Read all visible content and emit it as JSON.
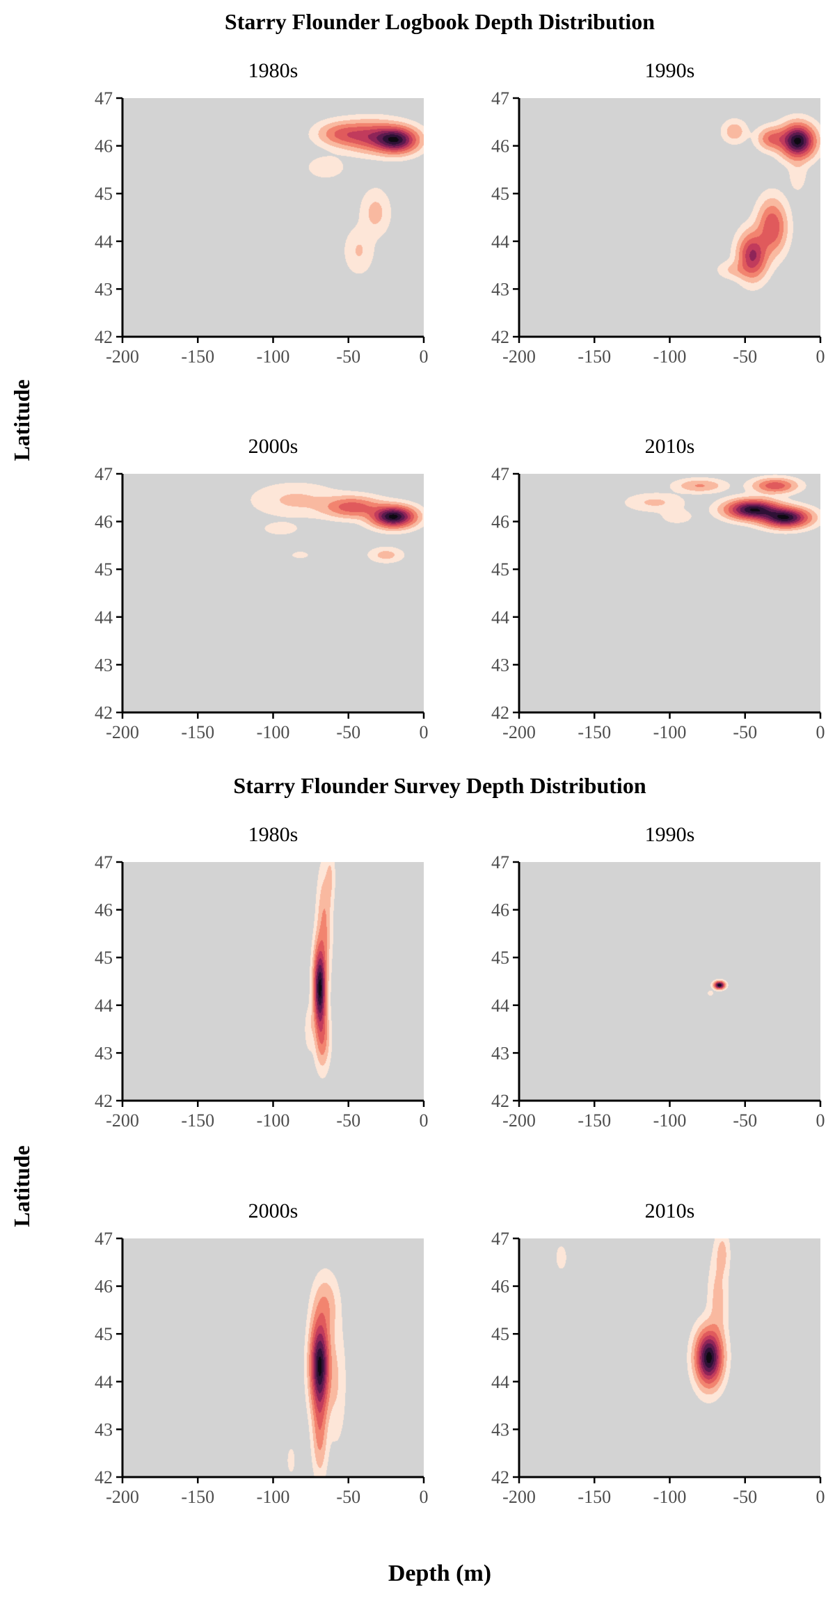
{
  "figure": {
    "xlabel": "Depth (m)",
    "ylabel": "Latitude"
  },
  "colors": {
    "panel_background": "#d3d3d3",
    "density_scale": [
      "#fde6d8",
      "#f9b9a0",
      "#f2846f",
      "#e05a5c",
      "#c13b5c",
      "#8e2458",
      "#5b1a4e",
      "#2e1136",
      "#0d0a12"
    ]
  },
  "chart_data": [
    {
      "type": "heatmap",
      "title": "Starry Flounder Logbook Depth Distribution",
      "xlabel": "Depth (m)",
      "ylabel": "Latitude",
      "xlim": [
        -200,
        0
      ],
      "ylim": [
        42,
        47
      ],
      "xticks": [
        -200,
        -150,
        -100,
        -50,
        0
      ],
      "yticks": [
        42,
        43,
        44,
        45,
        46,
        47
      ],
      "xtick_labels": [
        "-200",
        "-150",
        "-100",
        "-50",
        "0"
      ],
      "ytick_labels": [
        "42",
        "43",
        "44",
        "45",
        "46",
        "47"
      ],
      "grid": false,
      "legend": "none",
      "panels": [
        {
          "label": "1980s",
          "density_peaks": [
            {
              "depth": -18,
              "lat": 46.12,
              "sd_depth": 9,
              "sd_lat": 0.17,
              "weight": 1.0
            },
            {
              "depth": -35,
              "lat": 46.2,
              "sd_depth": 12,
              "sd_lat": 0.2,
              "weight": 0.55
            },
            {
              "depth": -55,
              "lat": 46.25,
              "sd_depth": 10,
              "sd_lat": 0.16,
              "weight": 0.35
            },
            {
              "depth": -65,
              "lat": 45.55,
              "sd_depth": 8,
              "sd_lat": 0.15,
              "weight": 0.1
            },
            {
              "depth": -32,
              "lat": 44.6,
              "sd_depth": 6,
              "sd_lat": 0.3,
              "weight": 0.16
            },
            {
              "depth": -43,
              "lat": 43.8,
              "sd_depth": 6,
              "sd_lat": 0.3,
              "weight": 0.13
            }
          ]
        },
        {
          "label": "1990s",
          "density_peaks": [
            {
              "depth": -15,
              "lat": 46.1,
              "sd_depth": 7,
              "sd_lat": 0.22,
              "weight": 0.9
            },
            {
              "depth": -32,
              "lat": 46.15,
              "sd_depth": 6,
              "sd_lat": 0.15,
              "weight": 0.3
            },
            {
              "depth": -57,
              "lat": 46.3,
              "sd_depth": 5,
              "sd_lat": 0.15,
              "weight": 0.15
            },
            {
              "depth": -15,
              "lat": 45.4,
              "sd_depth": 4,
              "sd_lat": 0.25,
              "weight": 0.06
            },
            {
              "depth": -45,
              "lat": 43.7,
              "sd_depth": 6,
              "sd_lat": 0.3,
              "weight": 0.55
            },
            {
              "depth": -32,
              "lat": 44.3,
              "sd_depth": 6,
              "sd_lat": 0.35,
              "weight": 0.4
            },
            {
              "depth": -57,
              "lat": 43.4,
              "sd_depth": 7,
              "sd_lat": 0.12,
              "weight": 0.1
            }
          ]
        },
        {
          "label": "2000s",
          "density_peaks": [
            {
              "depth": -20,
              "lat": 46.1,
              "sd_depth": 9,
              "sd_lat": 0.14,
              "weight": 1.0
            },
            {
              "depth": -47,
              "lat": 46.3,
              "sd_depth": 12,
              "sd_lat": 0.14,
              "weight": 0.4
            },
            {
              "depth": -85,
              "lat": 46.45,
              "sd_depth": 18,
              "sd_lat": 0.22,
              "weight": 0.12
            },
            {
              "depth": -95,
              "lat": 45.85,
              "sd_depth": 7,
              "sd_lat": 0.08,
              "weight": 0.09
            },
            {
              "depth": -25,
              "lat": 45.3,
              "sd_depth": 7,
              "sd_lat": 0.1,
              "weight": 0.14
            },
            {
              "depth": -82,
              "lat": 45.3,
              "sd_depth": 4,
              "sd_lat": 0.05,
              "weight": 0.07
            }
          ]
        },
        {
          "label": "2010s",
          "density_peaks": [
            {
              "depth": -45,
              "lat": 46.25,
              "sd_depth": 11,
              "sd_lat": 0.13,
              "weight": 0.8
            },
            {
              "depth": -23,
              "lat": 46.08,
              "sd_depth": 10,
              "sd_lat": 0.13,
              "weight": 0.8
            },
            {
              "depth": -30,
              "lat": 46.75,
              "sd_depth": 9,
              "sd_lat": 0.1,
              "weight": 0.35
            },
            {
              "depth": -80,
              "lat": 46.75,
              "sd_depth": 10,
              "sd_lat": 0.09,
              "weight": 0.18
            },
            {
              "depth": -110,
              "lat": 46.4,
              "sd_depth": 12,
              "sd_lat": 0.12,
              "weight": 0.1
            },
            {
              "depth": -95,
              "lat": 46.1,
              "sd_depth": 7,
              "sd_lat": 0.1,
              "weight": 0.06
            }
          ]
        }
      ]
    },
    {
      "type": "heatmap",
      "title": "Starry Flounder Survey Depth Distribution",
      "xlabel": "Depth (m)",
      "ylabel": "Latitude",
      "xlim": [
        -200,
        0
      ],
      "ylim": [
        42,
        47
      ],
      "xticks": [
        -200,
        -150,
        -100,
        -50,
        0
      ],
      "yticks": [
        42,
        43,
        44,
        45,
        46,
        47
      ],
      "xtick_labels": [
        "-200",
        "-150",
        "-100",
        "-50",
        "0"
      ],
      "ytick_labels": [
        "42",
        "43",
        "44",
        "45",
        "46",
        "47"
      ],
      "grid": false,
      "legend": "none",
      "panels": [
        {
          "label": "1980s",
          "density_peaks": [
            {
              "depth": -69,
              "lat": 44.35,
              "sd_depth": 2.6,
              "sd_lat": 0.55,
              "weight": 1.0
            },
            {
              "depth": -66,
              "lat": 45.7,
              "sd_depth": 3,
              "sd_lat": 0.7,
              "weight": 0.22
            },
            {
              "depth": -67,
              "lat": 43.3,
              "sd_depth": 3,
              "sd_lat": 0.4,
              "weight": 0.25
            },
            {
              "depth": -76,
              "lat": 43.5,
              "sd_depth": 2,
              "sd_lat": 0.3,
              "weight": 0.08
            },
            {
              "depth": -62,
              "lat": 46.7,
              "sd_depth": 2,
              "sd_lat": 0.35,
              "weight": 0.1
            }
          ]
        },
        {
          "label": "1990s",
          "density_peaks": [
            {
              "depth": -67,
              "lat": 44.42,
              "sd_depth": 2.2,
              "sd_lat": 0.05,
              "weight": 1.0
            },
            {
              "depth": -73,
              "lat": 44.25,
              "sd_depth": 1.4,
              "sd_lat": 0.04,
              "weight": 0.07
            }
          ]
        },
        {
          "label": "2000s",
          "density_peaks": [
            {
              "depth": -69,
              "lat": 44.35,
              "sd_depth": 4,
              "sd_lat": 0.6,
              "weight": 1.0
            },
            {
              "depth": -69,
              "lat": 43.0,
              "sd_depth": 3,
              "sd_lat": 0.6,
              "weight": 0.25
            },
            {
              "depth": -65,
              "lat": 45.6,
              "sd_depth": 5,
              "sd_lat": 0.4,
              "weight": 0.18
            },
            {
              "depth": -58,
              "lat": 44.0,
              "sd_depth": 4,
              "sd_lat": 0.8,
              "weight": 0.1
            },
            {
              "depth": -88,
              "lat": 42.35,
              "sd_depth": 2,
              "sd_lat": 0.2,
              "weight": 0.06
            }
          ]
        },
        {
          "label": "2010s",
          "density_peaks": [
            {
              "depth": -74,
              "lat": 44.5,
              "sd_depth": 5.5,
              "sd_lat": 0.36,
              "weight": 1.0
            },
            {
              "depth": -68,
              "lat": 45.7,
              "sd_depth": 4,
              "sd_lat": 0.6,
              "weight": 0.14
            },
            {
              "depth": -65,
              "lat": 46.7,
              "sd_depth": 3,
              "sd_lat": 0.3,
              "weight": 0.12
            },
            {
              "depth": -172,
              "lat": 46.6,
              "sd_depth": 2.5,
              "sd_lat": 0.18,
              "weight": 0.07
            }
          ]
        }
      ]
    }
  ]
}
